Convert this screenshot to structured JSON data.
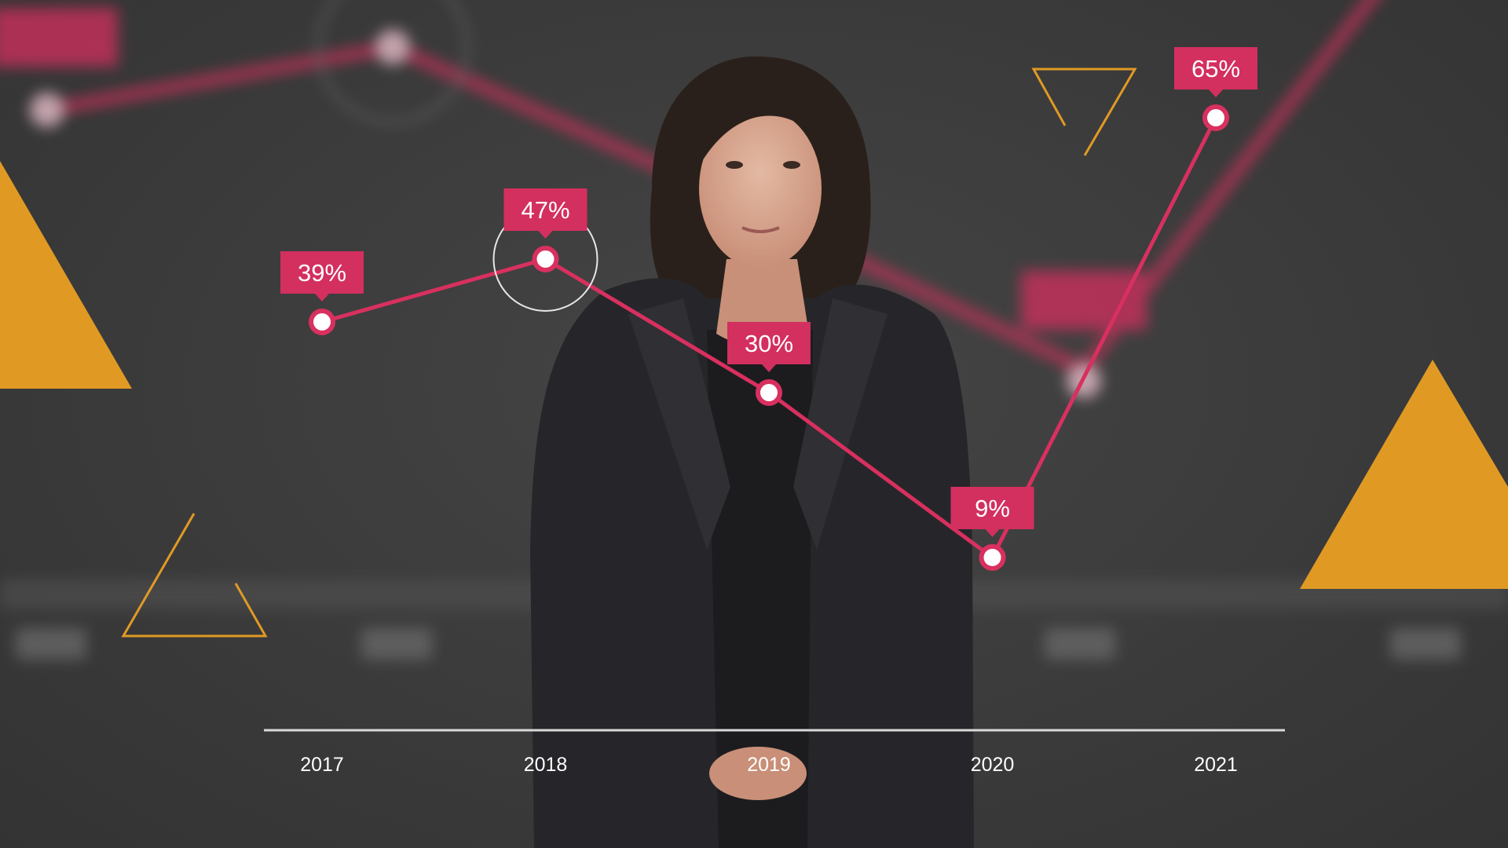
{
  "colors": {
    "background": "#3a3a3a",
    "line": "#d8305f",
    "label_box": "#d32f5f",
    "point_fill": "#ffffff",
    "triangle": "#e09a24",
    "axis": "#d9d9d9"
  },
  "chart_data": {
    "type": "line",
    "categories": [
      "2017",
      "2018",
      "2019",
      "2020",
      "2021"
    ],
    "values": [
      39,
      47,
      30,
      9,
      65
    ],
    "data_labels": [
      "39%",
      "47%",
      "30%",
      "9%",
      "65%"
    ],
    "highlighted_index": 1,
    "title": "",
    "xlabel": "",
    "ylabel": "",
    "ylim": [
      0,
      70
    ],
    "grid": false,
    "legend": "none"
  }
}
